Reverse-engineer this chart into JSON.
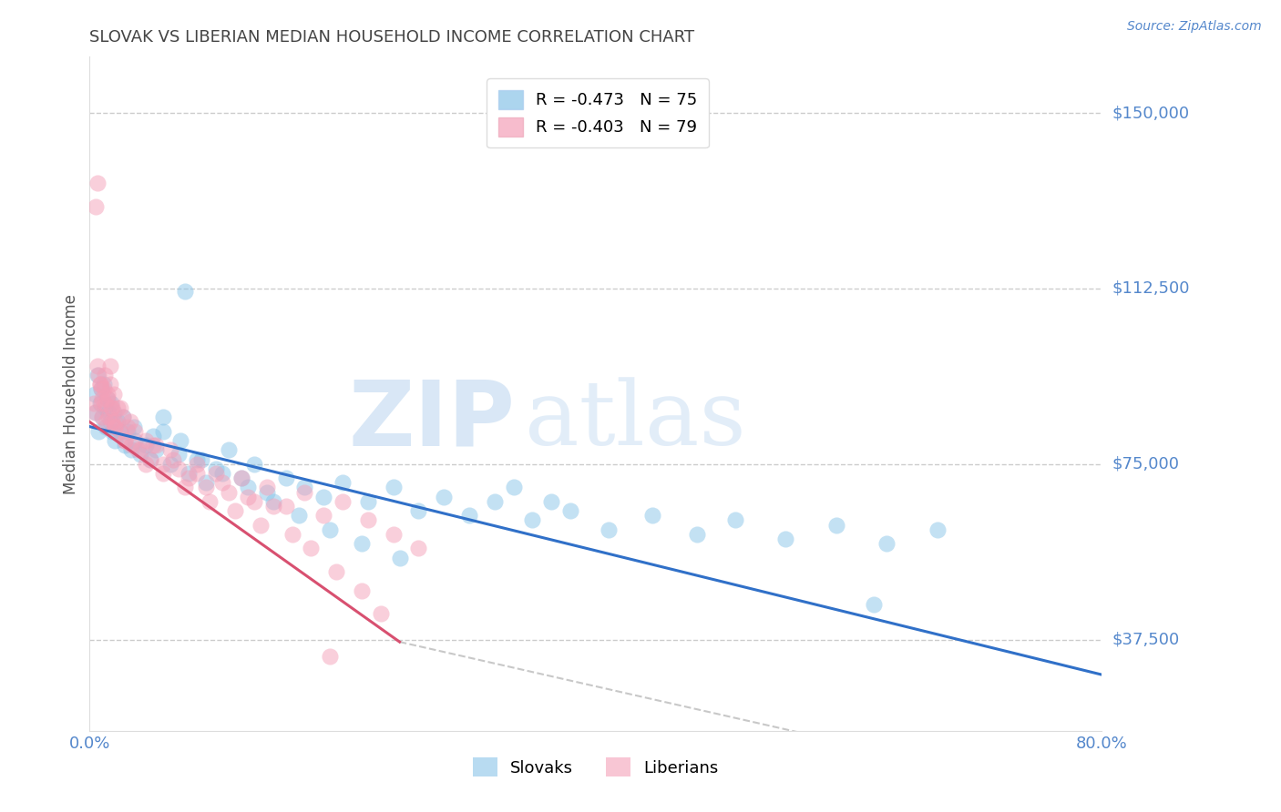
{
  "title": "SLOVAK VS LIBERIAN MEDIAN HOUSEHOLD INCOME CORRELATION CHART",
  "source": "Source: ZipAtlas.com",
  "ylabel": "Median Household Income",
  "xlim": [
    0.0,
    0.8
  ],
  "ylim": [
    18000,
    162000
  ],
  "yticks": [
    37500,
    75000,
    112500,
    150000
  ],
  "ytick_labels": [
    "$37,500",
    "$75,000",
    "$112,500",
    "$150,000"
  ],
  "xticks": [
    0.0,
    0.1,
    0.2,
    0.3,
    0.4,
    0.5,
    0.6,
    0.7,
    0.8
  ],
  "xtick_labels": [
    "0.0%",
    "",
    "",
    "",
    "",
    "",
    "",
    "",
    "80.0%"
  ],
  "grid_color": "#cccccc",
  "background_color": "#ffffff",
  "watermark_zip": "ZIP",
  "watermark_atlas": "atlas",
  "slovaks_color": "#89C4E8",
  "liberians_color": "#F4A0B8",
  "blue_line_color": "#3070C8",
  "pink_line_color": "#D85070",
  "dashed_line_color": "#C8C8C8",
  "axis_color": "#5588CC",
  "title_color": "#444444",
  "slovaks_x": [
    0.004,
    0.005,
    0.006,
    0.007,
    0.008,
    0.009,
    0.01,
    0.011,
    0.012,
    0.013,
    0.014,
    0.015,
    0.016,
    0.017,
    0.018,
    0.019,
    0.02,
    0.022,
    0.024,
    0.026,
    0.028,
    0.03,
    0.033,
    0.036,
    0.04,
    0.044,
    0.048,
    0.052,
    0.058,
    0.064,
    0.07,
    0.078,
    0.085,
    0.092,
    0.1,
    0.11,
    0.12,
    0.13,
    0.14,
    0.155,
    0.17,
    0.185,
    0.2,
    0.22,
    0.24,
    0.26,
    0.28,
    0.3,
    0.32,
    0.35,
    0.38,
    0.41,
    0.445,
    0.48,
    0.51,
    0.55,
    0.59,
    0.63,
    0.67,
    0.058,
    0.072,
    0.088,
    0.105,
    0.125,
    0.145,
    0.165,
    0.19,
    0.215,
    0.245,
    0.335,
    0.365,
    0.62,
    0.035,
    0.05,
    0.075
  ],
  "slovaks_y": [
    90000,
    86000,
    94000,
    82000,
    88000,
    91000,
    85000,
    92000,
    87000,
    83000,
    89000,
    86000,
    84000,
    88000,
    82000,
    86000,
    80000,
    84000,
    82000,
    85000,
    79000,
    82000,
    78000,
    80000,
    77000,
    79000,
    76000,
    78000,
    82000,
    75000,
    77000,
    73000,
    76000,
    71000,
    74000,
    78000,
    72000,
    75000,
    69000,
    72000,
    70000,
    68000,
    71000,
    67000,
    70000,
    65000,
    68000,
    64000,
    67000,
    63000,
    65000,
    61000,
    64000,
    60000,
    63000,
    59000,
    62000,
    58000,
    61000,
    85000,
    80000,
    76000,
    73000,
    70000,
    67000,
    64000,
    61000,
    58000,
    55000,
    70000,
    67000,
    45000,
    83000,
    81000,
    112000
  ],
  "liberians_x": [
    0.003,
    0.004,
    0.005,
    0.006,
    0.007,
    0.008,
    0.009,
    0.01,
    0.011,
    0.012,
    0.013,
    0.014,
    0.015,
    0.016,
    0.017,
    0.018,
    0.019,
    0.02,
    0.022,
    0.024,
    0.026,
    0.028,
    0.03,
    0.033,
    0.036,
    0.04,
    0.044,
    0.048,
    0.052,
    0.058,
    0.064,
    0.07,
    0.078,
    0.085,
    0.092,
    0.1,
    0.11,
    0.12,
    0.13,
    0.14,
    0.155,
    0.17,
    0.185,
    0.2,
    0.22,
    0.24,
    0.26,
    0.006,
    0.008,
    0.01,
    0.012,
    0.014,
    0.016,
    0.018,
    0.02,
    0.024,
    0.028,
    0.032,
    0.038,
    0.044,
    0.05,
    0.058,
    0.066,
    0.075,
    0.085,
    0.095,
    0.105,
    0.115,
    0.125,
    0.135,
    0.145,
    0.16,
    0.175,
    0.195,
    0.215,
    0.23,
    0.009,
    0.02,
    0.19
  ],
  "liberians_y": [
    88000,
    86000,
    130000,
    135000,
    94000,
    92000,
    88000,
    85000,
    91000,
    88000,
    84000,
    89000,
    85000,
    92000,
    87000,
    84000,
    90000,
    83000,
    87000,
    82000,
    85000,
    80000,
    83000,
    79000,
    82000,
    78000,
    80000,
    76000,
    79000,
    75000,
    78000,
    74000,
    72000,
    75000,
    70000,
    73000,
    69000,
    72000,
    67000,
    70000,
    66000,
    69000,
    64000,
    67000,
    63000,
    60000,
    57000,
    96000,
    92000,
    89000,
    94000,
    90000,
    96000,
    87000,
    83000,
    87000,
    80000,
    84000,
    78000,
    75000,
    79000,
    73000,
    76000,
    70000,
    73000,
    67000,
    71000,
    65000,
    68000,
    62000,
    66000,
    60000,
    57000,
    52000,
    48000,
    43000,
    91000,
    84000,
    34000
  ],
  "blue_line_x": [
    0.0,
    0.8
  ],
  "blue_line_y": [
    83000,
    30000
  ],
  "pink_line_x": [
    0.0,
    0.245
  ],
  "pink_line_y": [
    84000,
    37000
  ],
  "dashed_line_x": [
    0.245,
    0.8
  ],
  "dashed_line_y": [
    37000,
    3000
  ],
  "legend_entries": [
    {
      "label": "R = -0.473   N = 75",
      "color": "#89C4E8"
    },
    {
      "label": "R = -0.403   N = 79",
      "color": "#F4A0B8"
    }
  ]
}
